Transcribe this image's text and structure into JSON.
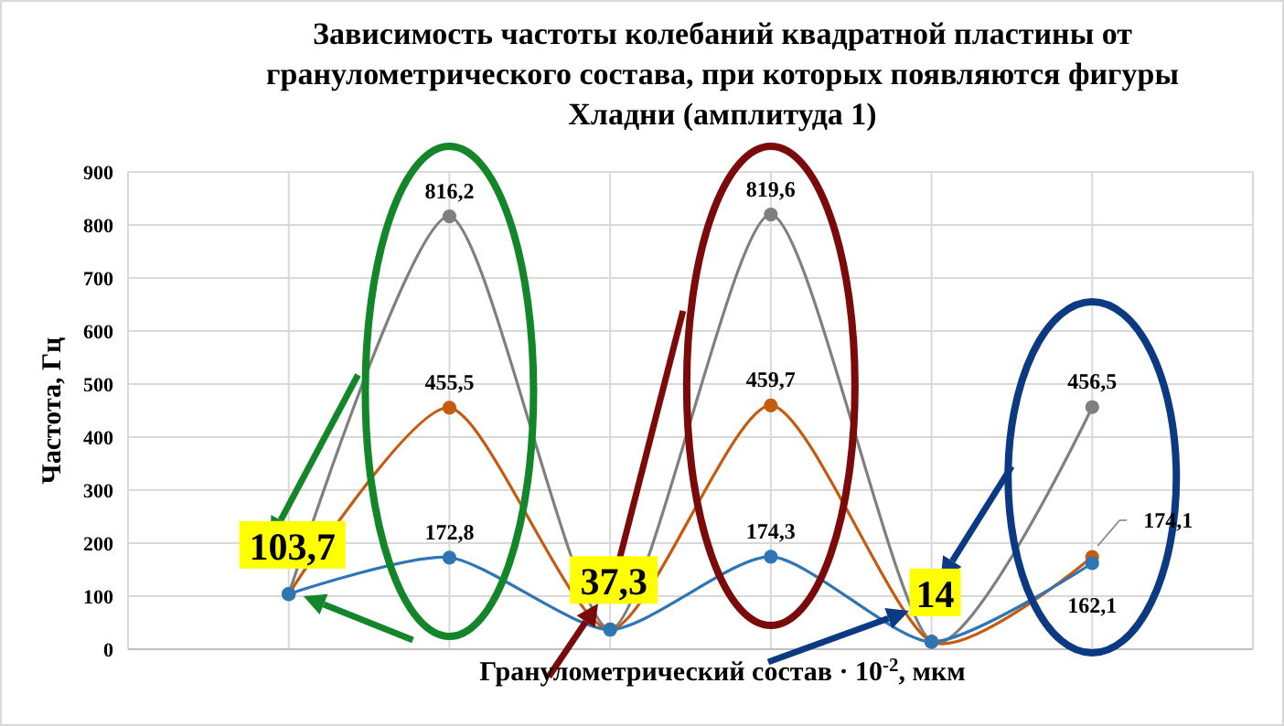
{
  "chart_data": {
    "type": "line",
    "title": "Зависимость частоты колебаний квадратной пластины от гранулометрического состава, при которых появляются фигуры Хладни (амплитуда 1)",
    "xlabel": "Гранулометрический состав · 10$^{-2}$, мкм",
    "ylabel": "Частота, Гц",
    "categories": [
      null,
      null,
      null,
      null,
      null,
      null
    ],
    "series": [
      {
        "color": "#7f7f7f",
        "values": [
          103.7,
          816.2,
          37.3,
          819.6,
          14,
          456.5
        ],
        "value_labels": [
          "103,7",
          "816,2",
          "37,3",
          "819,6",
          "14",
          "456,5"
        ]
      },
      {
        "color": "#c55a11",
        "values": [
          104,
          455.5,
          37,
          459.7,
          14,
          174.1
        ],
        "value_labels": [
          null,
          "455,5",
          null,
          "459,7",
          null,
          "174,1"
        ]
      },
      {
        "color": "#2e75b6",
        "values": [
          104,
          172.8,
          37,
          174.3,
          14,
          162.1
        ],
        "value_labels": [
          null,
          "172,8",
          null,
          "174,3",
          null,
          "162,1"
        ]
      }
    ],
    "ylim": [
      0,
      900
    ],
    "yticks": [
      0,
      100,
      200,
      300,
      400,
      500,
      600,
      700,
      800,
      900
    ],
    "grid": true,
    "marker": "circle",
    "line_style": "solid"
  }
}
